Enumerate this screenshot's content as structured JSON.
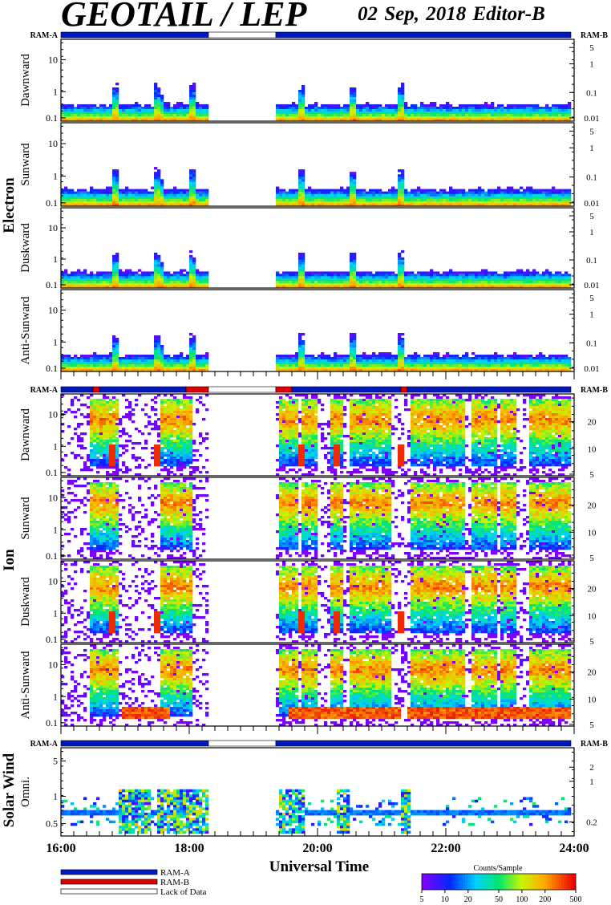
{
  "header": {
    "title": "GEOTAIL / LEP",
    "date_editor": "02 Sep, 2018   Editor-B"
  },
  "groups": [
    {
      "name": "Electron",
      "panels": [
        "Dawnward",
        "Sunward",
        "Duskward",
        "Anti-Sunward"
      ]
    },
    {
      "name": "Ion",
      "panels": [
        "Dawnward",
        "Sunward",
        "Duskward",
        "Anti-Sunward"
      ]
    },
    {
      "name": "Solar Wind",
      "panels": [
        "Omni."
      ]
    }
  ],
  "ram_labels": {
    "left": "RAM-A",
    "right": "RAM-B"
  },
  "legend": {
    "ram_a": "RAM-A",
    "ram_b": "RAM-B",
    "lack": "Lack of Data"
  },
  "colors": {
    "ram_a": "#0018c0",
    "ram_b": "#e00000",
    "lack": "#ffffff"
  },
  "colorbar": {
    "title": "Counts/Sample",
    "ticks": [
      "5",
      "10",
      "20",
      "50",
      "100",
      "200",
      "500"
    ]
  },
  "chart_data": {
    "type": "heatmap",
    "xlabel": "Universal Time",
    "x_ticks": [
      "16:00",
      "18:00",
      "20:00",
      "22:00",
      "24:00"
    ],
    "x_range_hours": [
      16,
      24
    ],
    "data_gaps_hours": [
      [
        18.3,
        19.35
      ]
    ],
    "left_axis_ticks_main": [
      "10",
      "1",
      "0.1"
    ],
    "left_axis_ticks_solar_wind": [
      "5",
      "1",
      "0.5"
    ],
    "right_axis_ticks_electron": [
      "5",
      "1",
      "0.1",
      "0.01"
    ],
    "right_axis_ticks_ion": [
      "20",
      "10",
      "5"
    ],
    "right_axis_ticks_solar_wind": [
      "2",
      "1",
      "0.2"
    ],
    "ram_status": [
      {
        "section": "Electron",
        "segments": [
          {
            "from": 16,
            "to": 18.3,
            "state": "ram_a"
          },
          {
            "from": 18.3,
            "to": 19.35,
            "state": "lack"
          },
          {
            "from": 19.35,
            "to": 23.95,
            "state": "ram_a"
          }
        ]
      },
      {
        "section": "Ion",
        "segments": [
          {
            "from": 16,
            "to": 16.5,
            "state": "ram_a"
          },
          {
            "from": 16.5,
            "to": 16.6,
            "state": "ram_b"
          },
          {
            "from": 16.6,
            "to": 17.95,
            "state": "ram_a"
          },
          {
            "from": 17.95,
            "to": 18.3,
            "state": "ram_b"
          },
          {
            "from": 18.3,
            "to": 19.35,
            "state": "lack"
          },
          {
            "from": 19.35,
            "to": 19.6,
            "state": "ram_b"
          },
          {
            "from": 19.6,
            "to": 21.3,
            "state": "ram_a"
          },
          {
            "from": 21.3,
            "to": 21.4,
            "state": "ram_b"
          },
          {
            "from": 21.4,
            "to": 23.95,
            "state": "ram_a"
          }
        ]
      },
      {
        "section": "Solar Wind",
        "segments": [
          {
            "from": 16,
            "to": 18.3,
            "state": "ram_a"
          },
          {
            "from": 18.3,
            "to": 19.35,
            "state": "lack"
          },
          {
            "from": 19.35,
            "to": 23.95,
            "state": "ram_a"
          }
        ]
      }
    ],
    "colorbar_range": [
      5,
      500
    ],
    "colorscale": "rainbow (purple-blue-cyan-green-yellow-orange-red)"
  }
}
